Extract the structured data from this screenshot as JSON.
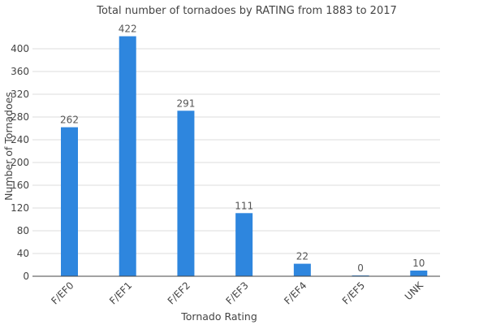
{
  "chart_data": {
    "type": "bar",
    "title": "Total number of tornadoes by RATING from 1883 to 2017",
    "xlabel": "Tornado Rating",
    "ylabel": "Number of Tornadoes",
    "categories": [
      "F/EF0",
      "F/EF1",
      "F/EF2",
      "F/EF3",
      "F/EF4",
      "F/EF5",
      "UNK"
    ],
    "values": [
      262,
      422,
      291,
      111,
      22,
      0,
      10
    ],
    "data_labels": [
      "262",
      "422",
      "291",
      "111",
      "22",
      "0",
      "10"
    ],
    "ylim": [
      0,
      440
    ],
    "yticks": [
      0,
      40,
      80,
      120,
      160,
      200,
      240,
      280,
      320,
      360,
      400
    ],
    "grid": true,
    "bar_color": "#2e86de"
  }
}
